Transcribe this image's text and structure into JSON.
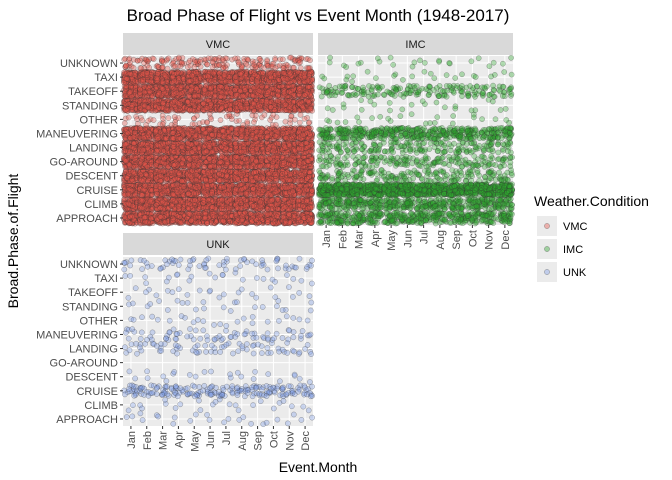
{
  "chart_data": {
    "type": "scatter",
    "title": "Broad Phase of Flight vs Event Month (1948-2017)",
    "xlabel": "Event.Month",
    "ylabel": "Broad.Phase.of.Flight",
    "x_categories": [
      "Jan",
      "Feb",
      "Mar",
      "Apr",
      "May",
      "Jun",
      "Jul",
      "Aug",
      "Sep",
      "Oct",
      "Nov",
      "Dec"
    ],
    "y_categories": [
      "APPROACH",
      "CLIMB",
      "CRUISE",
      "DESCENT",
      "GO-AROUND",
      "LANDING",
      "MANEUVERING",
      "OTHER",
      "STANDING",
      "TAKEOFF",
      "TAXI",
      "UNKNOWN"
    ],
    "jitter": true,
    "grid": true,
    "legend": {
      "title": "Weather.Condition",
      "placement": "right",
      "entries": [
        "VMC",
        "IMC",
        "UNK"
      ]
    },
    "colors": {
      "VMC": "#e8564a",
      "IMC": "#2ea82e",
      "UNK": "#7f9ee8",
      "panel_bg": "#ebebeb",
      "strip_bg": "#d9d9d9",
      "grid": "#ffffff"
    },
    "panels": [
      {
        "name": "VMC",
        "density": {
          "APPROACH": 5,
          "CLIMB": 5,
          "CRUISE": 5,
          "DESCENT": 5,
          "GO-AROUND": 5,
          "LANDING": 5,
          "MANEUVERING": 5,
          "OTHER": 2,
          "STANDING": 5,
          "TAKEOFF": 5,
          "TAXI": 5,
          "UNKNOWN": 3
        }
      },
      {
        "name": "IMC",
        "density": {
          "APPROACH": 4,
          "CLIMB": 4,
          "CRUISE": 5,
          "DESCENT": 3,
          "GO-AROUND": 3,
          "LANDING": 3,
          "MANEUVERING": 4,
          "OTHER": 1,
          "STANDING": 1,
          "TAKEOFF": 3,
          "TAXI": 1,
          "UNKNOWN": 1
        }
      },
      {
        "name": "UNK",
        "density": {
          "APPROACH": 1,
          "CLIMB": 1,
          "CRUISE": 3,
          "DESCENT": 1,
          "GO-AROUND": 0,
          "LANDING": 2,
          "MANEUVERING": 2,
          "OTHER": 1,
          "STANDING": 1,
          "TAKEOFF": 1,
          "TAXI": 1,
          "UNKNOWN": 2
        }
      }
    ]
  }
}
